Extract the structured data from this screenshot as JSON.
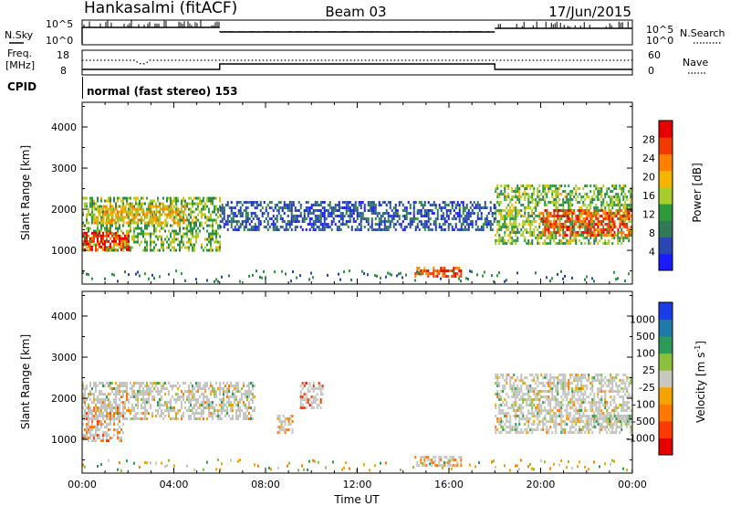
{
  "header": {
    "station": "Hankasalmi (fitACF)",
    "beam": "Beam 03",
    "date": "17/Jun/2015"
  },
  "panels": {
    "nsky": {
      "left_label": "N.Sky",
      "y_top": "10^5",
      "y_bottom": "10^0",
      "right_top": "10^5",
      "right_bottom": "10^0",
      "right_label": "N.Search"
    },
    "freq": {
      "left_label_line1": "Freq.",
      "left_label_line2": "[MHz]",
      "y_top": "18",
      "y_bottom": "8",
      "right_top": "60",
      "right_bottom": "0",
      "right_label": "Nave"
    },
    "cpid": {
      "left_label": "CPID",
      "text": "normal (fast stereo) 153"
    }
  },
  "colors": {
    "power_scale": [
      "#1a1aff",
      "#2a46b0",
      "#2f7a55",
      "#2e9a3c",
      "#a8cc2a",
      "#f5b400",
      "#ff8000",
      "#f03a00",
      "#e60000"
    ],
    "velocity_scale": [
      "#1a3de6",
      "#1f7aa8",
      "#2e9a5a",
      "#8ac03a",
      "#c8c8c0",
      "#f5a300",
      "#ff7800",
      "#ff3a00",
      "#e60000"
    ],
    "ground_scatter": "#c4c4c0"
  },
  "chart_data": [
    {
      "type": "heatmap",
      "title": "",
      "xlabel": "",
      "ylabel": "Slant Range [km]",
      "x_ticks": [
        "00:00",
        "04:00",
        "08:00",
        "12:00",
        "16:00",
        "20:00",
        "00:00"
      ],
      "y_ticks": [
        "1000",
        "2000",
        "3000",
        "4000"
      ],
      "xlim": [
        0,
        24
      ],
      "ylim": [
        180,
        4600
      ],
      "colorbar": {
        "label": "Power [dB]",
        "ticks": [
          "28",
          "24",
          "20",
          "16",
          "12",
          "8",
          "4"
        ],
        "range": [
          0,
          32
        ]
      },
      "features": [
        {
          "t_start": 0.0,
          "t_end": 6.0,
          "r_start": 1000,
          "r_end": 2300,
          "value": 14
        },
        {
          "t_start": 0.0,
          "t_end": 2.0,
          "r_start": 1050,
          "r_end": 1450,
          "value": 28
        },
        {
          "t_start": 0.5,
          "t_end": 4.5,
          "r_start": 1700,
          "r_end": 2100,
          "value": 20
        },
        {
          "t_start": 14.5,
          "t_end": 16.5,
          "r_start": 350,
          "r_end": 600,
          "value": 26
        },
        {
          "t_start": 18.0,
          "t_end": 24.0,
          "r_start": 1200,
          "r_end": 2600,
          "value": 14
        },
        {
          "t_start": 20.0,
          "t_end": 24.0,
          "r_start": 1400,
          "r_end": 2000,
          "value": 26
        },
        {
          "t_start": 6.0,
          "t_end": 18.0,
          "r_start": 1500,
          "r_end": 2200,
          "value": 6
        }
      ]
    },
    {
      "type": "heatmap",
      "title": "",
      "xlabel": "Time UT",
      "ylabel": "Slant Range [km]",
      "x_ticks": [
        "00:00",
        "04:00",
        "08:00",
        "12:00",
        "16:00",
        "20:00",
        "00:00"
      ],
      "y_ticks": [
        "1000",
        "2000",
        "3000",
        "4000"
      ],
      "xlim": [
        0,
        24
      ],
      "ylim": [
        180,
        4600
      ],
      "colorbar": {
        "label_main": "Velocity [m s",
        "label_sup": "-1",
        "label_close": "]",
        "ticks": [
          "1000",
          "500",
          "100",
          "25",
          "-25",
          "-100",
          "-500",
          "-1000"
        ]
      },
      "features": [
        {
          "t_start": 0.0,
          "t_end": 7.5,
          "r_start": 1500,
          "r_end": 2400,
          "value": 0
        },
        {
          "t_start": 0.0,
          "t_end": 1.8,
          "r_start": 1000,
          "r_end": 1800,
          "value": -400
        },
        {
          "t_start": 9.5,
          "t_end": 10.5,
          "r_start": 1800,
          "r_end": 2400,
          "value": -900
        },
        {
          "t_start": 8.5,
          "t_end": 9.2,
          "r_start": 1200,
          "r_end": 1600,
          "value": -200
        },
        {
          "t_start": 14.5,
          "t_end": 16.5,
          "r_start": 350,
          "r_end": 600,
          "value": -200
        },
        {
          "t_start": 18.0,
          "t_end": 24.0,
          "r_start": 1200,
          "r_end": 2600,
          "value": 0
        },
        {
          "t_start": 22.0,
          "t_end": 24.0,
          "r_start": 1300,
          "r_end": 1600,
          "value": 200
        }
      ]
    }
  ]
}
